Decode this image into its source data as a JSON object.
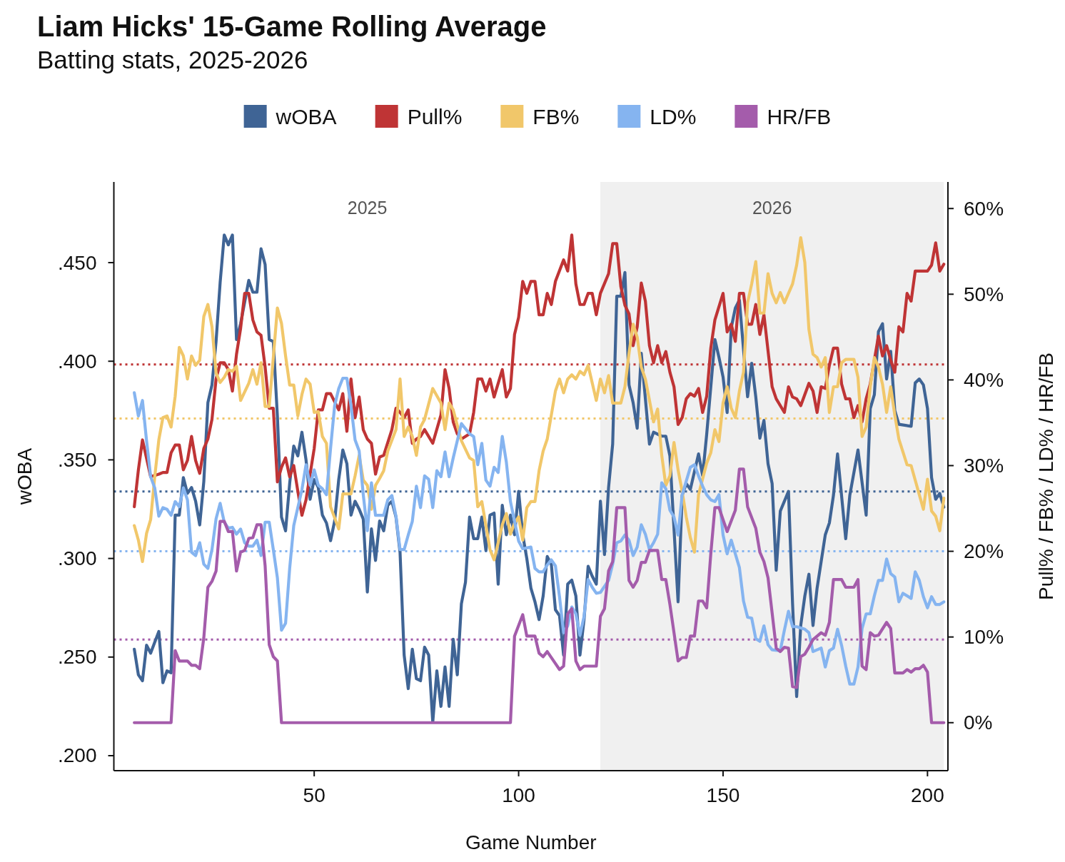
{
  "chart_data": {
    "type": "line",
    "title": "Liam Hicks' 15-Game Rolling Average",
    "subtitle": "Batting stats, 2025-2026",
    "xlabel": "Game Number",
    "ylabel": "wOBA",
    "y2label": "Pull% / FB% / LD% / HR/FB",
    "xlim": [
      1,
      205
    ],
    "xticks": [
      50,
      100,
      150,
      200
    ],
    "ylim": [
      0.1924,
      0.4909
    ],
    "yticks": [
      {
        "value": 0.2,
        "label": ".200"
      },
      {
        "value": 0.25,
        "label": ".250"
      },
      {
        "value": 0.3,
        "label": ".300"
      },
      {
        "value": 0.35,
        "label": ".350"
      },
      {
        "value": 0.4,
        "label": ".400"
      },
      {
        "value": 0.45,
        "label": ".450"
      }
    ],
    "y2lim": [
      -5.6,
      63.1
    ],
    "y2ticks": [
      {
        "value": 0,
        "label": "0%"
      },
      {
        "value": 10,
        "label": "10%"
      },
      {
        "value": 20,
        "label": "20%"
      },
      {
        "value": 30,
        "label": "30%"
      },
      {
        "value": 40,
        "label": "40%"
      },
      {
        "value": 50,
        "label": "50%"
      },
      {
        "value": 60,
        "label": "60%"
      }
    ],
    "legend": "top",
    "line_style": "solid",
    "annotations": [
      "2025"
    ],
    "bands": [
      {
        "axis": "x",
        "from": 120,
        "to": 204,
        "label": "2026",
        "color": "#f0f0f0"
      }
    ],
    "ref_lines": [
      {
        "axis": "y",
        "value": 0.334,
        "color": "#3f6495",
        "line_style": "dotted"
      },
      {
        "axis": "y2",
        "value": 41.8,
        "color": "#bf3435",
        "line_style": "dotted"
      },
      {
        "axis": "y2",
        "value": 35.5,
        "color": "#f1c76a",
        "line_style": "dotted"
      },
      {
        "axis": "y2",
        "value": 20.0,
        "color": "#85b4f0",
        "line_style": "dotted"
      },
      {
        "axis": "y2",
        "value": 9.7,
        "color": "#a45cab",
        "line_style": "dotted"
      }
    ],
    "series": [
      {
        "name": "wOBA",
        "color": "#3f6495",
        "x": [
          6,
          7,
          8,
          9,
          10,
          12,
          13,
          14,
          15,
          16,
          17,
          18,
          19,
          20,
          21,
          22,
          23,
          24,
          25,
          26,
          27,
          28,
          29,
          30,
          31,
          32,
          34,
          35,
          36,
          37,
          38,
          39,
          40,
          41,
          42,
          43,
          44,
          45,
          46,
          47,
          48,
          49,
          50,
          51,
          52,
          53,
          54,
          55,
          56,
          57,
          58,
          59,
          60,
          61,
          62,
          63,
          64,
          65,
          66,
          67,
          68,
          69,
          70,
          71,
          72,
          73,
          74,
          75,
          76,
          77,
          78,
          79,
          80,
          81,
          82,
          83,
          84,
          85,
          86,
          87,
          88,
          89,
          90,
          91,
          92,
          93,
          94,
          95,
          96,
          97,
          98,
          99,
          100,
          101,
          102,
          103,
          104,
          105,
          106,
          107,
          108,
          109,
          110,
          111,
          112,
          113,
          114,
          115,
          116,
          117,
          118,
          119,
          120,
          121,
          122,
          123,
          124,
          125,
          126,
          127,
          128,
          129,
          130,
          132,
          133,
          135,
          136,
          137,
          139,
          140,
          141,
          142,
          144,
          145,
          146,
          148,
          149,
          150,
          151,
          152,
          153,
          154,
          155,
          156,
          157,
          158,
          159,
          160,
          161,
          162,
          163,
          164,
          166,
          167,
          168,
          169,
          170,
          171,
          172,
          173,
          175,
          176,
          177,
          178,
          180,
          181,
          183,
          185,
          186,
          187,
          188,
          189,
          190,
          191,
          192,
          193,
          196,
          197,
          198,
          199,
          200,
          201,
          202,
          203,
          204
        ],
        "values": [
          0.254,
          0.241,
          0.238,
          0.256,
          0.252,
          0.263,
          0.237,
          0.243,
          0.242,
          0.322,
          0.322,
          0.341,
          0.333,
          0.336,
          0.329,
          0.317,
          0.339,
          0.379,
          0.388,
          0.41,
          0.44,
          0.464,
          0.459,
          0.464,
          0.411,
          0.419,
          0.441,
          0.435,
          0.435,
          0.457,
          0.449,
          0.411,
          0.41,
          0.372,
          0.321,
          0.314,
          0.338,
          0.357,
          0.352,
          0.364,
          0.35,
          0.33,
          0.34,
          0.336,
          0.322,
          0.318,
          0.309,
          0.319,
          0.34,
          0.355,
          0.348,
          0.322,
          0.329,
          0.325,
          0.32,
          0.283,
          0.315,
          0.299,
          0.319,
          0.314,
          0.327,
          0.329,
          0.321,
          0.303,
          0.251,
          0.234,
          0.254,
          0.239,
          0.238,
          0.255,
          0.251,
          0.217,
          0.243,
          0.225,
          0.245,
          0.225,
          0.259,
          0.241,
          0.277,
          0.288,
          0.321,
          0.31,
          0.31,
          0.321,
          0.304,
          0.322,
          0.323,
          0.287,
          0.327,
          0.312,
          0.322,
          0.312,
          0.334,
          0.312,
          0.3,
          0.285,
          0.278,
          0.269,
          0.281,
          0.301,
          0.297,
          0.274,
          0.271,
          0.251,
          0.287,
          0.289,
          0.281,
          0.251,
          0.269,
          0.296,
          0.291,
          0.287,
          0.329,
          0.302,
          0.336,
          0.358,
          0.433,
          0.433,
          0.445,
          0.388,
          0.379,
          0.366,
          0.404,
          0.358,
          0.364,
          0.362,
          0.362,
          0.352,
          0.278,
          0.332,
          0.338,
          0.335,
          0.353,
          0.342,
          0.363,
          0.411,
          0.402,
          0.392,
          0.374,
          0.417,
          0.427,
          0.431,
          0.406,
          0.382,
          0.399,
          0.382,
          0.361,
          0.37,
          0.348,
          0.338,
          0.294,
          0.324,
          0.334,
          0.277,
          0.23,
          0.266,
          0.281,
          0.292,
          0.266,
          0.285,
          0.312,
          0.318,
          0.332,
          0.353,
          0.31,
          0.332,
          0.355,
          0.322,
          0.376,
          0.383,
          0.415,
          0.419,
          0.391,
          0.405,
          0.375,
          0.368,
          0.367,
          0.389,
          0.391,
          0.388,
          0.376,
          0.341,
          0.33,
          0.333,
          0.326
        ]
      },
      {
        "name": "Pull%",
        "color": "#bf3435",
        "axis": "y2",
        "x": [
          6,
          7,
          8,
          10,
          12,
          13,
          14,
          15,
          16,
          17,
          18,
          19,
          20,
          21,
          22,
          23,
          24,
          25,
          26,
          27,
          28,
          29,
          30,
          31,
          32,
          33,
          34,
          35,
          36,
          37,
          38,
          39,
          40,
          41,
          42,
          43,
          44,
          45,
          46,
          47,
          48,
          49,
          50,
          51,
          52,
          53,
          54,
          56,
          57,
          58,
          59,
          60,
          61,
          62,
          63,
          64,
          65,
          66,
          67,
          69,
          70,
          71,
          72,
          73,
          74,
          75,
          76,
          77,
          79,
          81,
          82,
          83,
          84,
          85,
          86,
          88,
          89,
          90,
          91,
          92,
          93,
          94,
          96,
          97,
          98,
          99,
          100,
          101,
          102,
          103,
          104,
          105,
          106,
          107,
          108,
          109,
          111,
          112,
          113,
          114,
          115,
          116,
          117,
          118,
          119,
          120,
          122,
          123,
          124,
          125,
          126,
          127,
          128,
          129,
          130,
          131,
          132,
          133,
          134,
          135,
          136,
          137,
          138,
          139,
          140,
          141,
          142,
          143,
          144,
          145,
          146,
          147,
          148,
          150,
          151,
          152,
          153,
          154,
          155,
          156,
          157,
          158,
          159,
          160,
          162,
          163,
          165,
          166,
          167,
          168,
          169,
          171,
          172,
          173,
          174,
          175,
          176,
          177,
          178,
          179,
          180,
          181,
          182,
          183,
          184,
          185,
          186,
          188,
          189,
          190,
          191,
          192,
          193,
          194,
          195,
          196,
          197,
          200,
          201,
          202,
          203,
          204
        ],
        "values": [
          25.2,
          29.5,
          33.0,
          28.7,
          29.0,
          29.2,
          29.2,
          31.5,
          32.4,
          32.4,
          29.5,
          30.6,
          33.4,
          30.6,
          29.1,
          32.0,
          33.1,
          35.4,
          40.1,
          42.0,
          42.0,
          41.2,
          38.7,
          43.0,
          46.0,
          50.1,
          50.1,
          47.0,
          45.6,
          45.2,
          41.5,
          36.7,
          36.7,
          28.1,
          29.8,
          30.9,
          28.7,
          30.0,
          27.0,
          24.2,
          26.0,
          29.0,
          32.0,
          36.5,
          36.5,
          38.4,
          38.4,
          36.5,
          38.4,
          34.0,
          40.1,
          35.6,
          38.0,
          34.2,
          33.1,
          32.6,
          29.0,
          31.0,
          31.2,
          34.2,
          36.7,
          36.2,
          35.6,
          36.5,
          32.6,
          33.1,
          33.4,
          34.2,
          32.6,
          35.9,
          41.2,
          39.0,
          35.1,
          33.7,
          33.1,
          33.7,
          36.2,
          40.1,
          40.1,
          38.7,
          40.1,
          38.0,
          41.2,
          38.0,
          39.0,
          45.3,
          47.3,
          51.5,
          50.1,
          51.5,
          51.5,
          47.6,
          47.6,
          50.1,
          48.8,
          51.5,
          54.0,
          52.7,
          56.9,
          51.2,
          48.8,
          48.8,
          50.1,
          50.1,
          47.6,
          50.1,
          52.4,
          55.9,
          55.9,
          50.9,
          48.7,
          47.7,
          44.0,
          46.2,
          51.3,
          49.2,
          44.0,
          42.0,
          44.0,
          42.0,
          43.3,
          40.9,
          39.2,
          34.8,
          35.6,
          37.8,
          38.4,
          38.1,
          39.0,
          36.2,
          38.1,
          43.7,
          47.0,
          50.1,
          45.6,
          46.5,
          44.5,
          50.1,
          50.1,
          46.5,
          46.5,
          48.8,
          45.3,
          47.6,
          39.2,
          37.8,
          36.2,
          39.2,
          38.0,
          37.8,
          37.0,
          39.6,
          38.7,
          36.2,
          39.2,
          39.0,
          41.7,
          43.7,
          43.7,
          39.5,
          37.8,
          37.8,
          35.6,
          37.0,
          35.1,
          37.8,
          39.5,
          45.1,
          42.8,
          44.0,
          42.3,
          40.9,
          46.2,
          45.6,
          50.1,
          49.2,
          52.7,
          52.7,
          53.4,
          56.0,
          52.7,
          53.5
        ]
      },
      {
        "name": "FB%",
        "color": "#f1c76a",
        "axis": "y2",
        "x": [
          6,
          7,
          8,
          9,
          10,
          11,
          12,
          13,
          14,
          15,
          16,
          17,
          18,
          19,
          20,
          21,
          22,
          23,
          24,
          25,
          26,
          27,
          28,
          29,
          30,
          31,
          32,
          34,
          35,
          36,
          37,
          38,
          39,
          40,
          41,
          42,
          43,
          44,
          45,
          46,
          47,
          48,
          49,
          50,
          51,
          52,
          53,
          54,
          56,
          57,
          59,
          60,
          61,
          62,
          63,
          64,
          65,
          66,
          67,
          68,
          70,
          71,
          72,
          73,
          74,
          75,
          76,
          77,
          79,
          81,
          82,
          83,
          84,
          86,
          88,
          89,
          90,
          91,
          93,
          94,
          95,
          96,
          97,
          98,
          99,
          100,
          101,
          102,
          103,
          104,
          105,
          106,
          107,
          109,
          110,
          111,
          112,
          113,
          114,
          115,
          116,
          117,
          119,
          120,
          121,
          122,
          123,
          125,
          126,
          127,
          128,
          129,
          130,
          131,
          133,
          134,
          135,
          136,
          137,
          138,
          139,
          140,
          141,
          142,
          143,
          144,
          146,
          147,
          148,
          149,
          150,
          151,
          152,
          153,
          154,
          155,
          156,
          157,
          158,
          159,
          160,
          161,
          162,
          163,
          164,
          165,
          167,
          168,
          169,
          170,
          171,
          172,
          173,
          174,
          175,
          176,
          177,
          178,
          179,
          180,
          182,
          183,
          184,
          185,
          186,
          187,
          188,
          189,
          190,
          191,
          192,
          193,
          195,
          196,
          198,
          199,
          200,
          201,
          202,
          203,
          204
        ],
        "values": [
          23.0,
          21.3,
          18.8,
          22.1,
          23.7,
          28.7,
          33.0,
          35.6,
          35.8,
          34.5,
          38.1,
          43.8,
          42.8,
          40.1,
          42.8,
          41.7,
          42.3,
          47.4,
          48.8,
          46.2,
          40.8,
          39.7,
          40.3,
          41.2,
          41.0,
          41.6,
          37.6,
          39.6,
          41.2,
          39.5,
          42.0,
          36.9,
          36.9,
          42.6,
          48.4,
          46.6,
          42.8,
          39.4,
          39.4,
          35.8,
          38.3,
          40.1,
          39.5,
          36.2,
          36.3,
          33.4,
          32.6,
          25.2,
          22.6,
          26.7,
          26.7,
          28.8,
          31.2,
          28.3,
          27.7,
          24.9,
          27.7,
          28.5,
          29.4,
          31.7,
          34.2,
          40.1,
          33.4,
          34.5,
          33.4,
          31.2,
          34.5,
          35.4,
          39.0,
          37.3,
          34.2,
          37.3,
          36.5,
          32.9,
          30.9,
          30.6,
          25.2,
          25.8,
          20.2,
          19.0,
          21.0,
          23.1,
          24.4,
          22.0,
          23.3,
          24.0,
          21.3,
          25.1,
          25.8,
          25.8,
          29.4,
          31.7,
          33.1,
          38.7,
          40.1,
          38.5,
          40.1,
          40.6,
          40.1,
          41.0,
          40.6,
          41.7,
          37.6,
          40.1,
          38.5,
          40.5,
          37.3,
          37.3,
          39.2,
          43.1,
          46.5,
          45.0,
          41.5,
          40.1,
          35.1,
          36.6,
          31.2,
          27.7,
          28.8,
          32.7,
          29.5,
          27.0,
          24.0,
          21.6,
          19.9,
          26.6,
          30.3,
          31.5,
          34.2,
          32.8,
          37.3,
          39.2,
          36.7,
          35.6,
          38.7,
          40.9,
          49.0,
          51.2,
          53.8,
          47.8,
          47.8,
          52.4,
          50.1,
          49.0,
          50.2,
          49.0,
          51.2,
          53.4,
          56.6,
          53.7,
          45.9,
          43.0,
          42.6,
          41.5,
          42.6,
          36.2,
          39.2,
          39.2,
          42.0,
          42.4,
          42.4,
          40.3,
          33.4,
          34.5,
          39.2,
          42.6,
          41.5,
          39.5,
          36.2,
          39.2,
          35.9,
          33.1,
          30.1,
          30.0,
          26.6,
          24.9,
          28.4,
          24.7,
          24.1,
          22.4,
          26.2
        ]
      },
      {
        "name": "LD%",
        "color": "#85b4f0",
        "axis": "y2",
        "x": [
          6,
          7,
          8,
          9,
          10,
          11,
          12,
          13,
          14,
          15,
          16,
          17,
          18,
          19,
          20,
          21,
          22,
          23,
          24,
          25,
          26,
          27,
          28,
          29,
          30,
          31,
          32,
          33,
          34,
          35,
          36,
          37,
          38,
          39,
          40,
          41,
          42,
          43,
          44,
          45,
          47,
          48,
          49,
          50,
          51,
          52,
          53,
          54,
          55,
          56,
          57,
          58,
          59,
          60,
          61,
          62,
          63,
          64,
          65,
          67,
          68,
          69,
          70,
          71,
          72,
          73,
          74,
          75,
          76,
          77,
          78,
          79,
          80,
          81,
          82,
          83,
          84,
          86,
          88,
          89,
          90,
          91,
          92,
          93,
          94,
          95,
          96,
          97,
          98,
          100,
          101,
          103,
          104,
          105,
          106,
          107,
          108,
          109,
          110,
          111,
          112,
          113,
          114,
          115,
          116,
          117,
          118,
          119,
          120,
          122,
          123,
          124,
          125,
          126,
          127,
          128,
          129,
          130,
          131,
          132,
          133,
          134,
          135,
          136,
          137,
          138,
          139,
          140,
          142,
          143,
          144,
          145,
          146,
          147,
          148,
          149,
          150,
          151,
          152,
          154,
          155,
          156,
          157,
          158,
          159,
          160,
          161,
          162,
          164,
          165,
          166,
          167,
          168,
          170,
          171,
          172,
          173,
          174,
          175,
          176,
          177,
          178,
          179,
          180,
          181,
          182,
          183,
          184,
          185,
          186,
          187,
          188,
          189,
          190,
          191,
          192,
          193,
          194,
          196,
          197,
          198,
          199,
          200,
          201,
          202,
          203,
          204
        ],
        "values": [
          38.5,
          35.8,
          37.6,
          32.9,
          28.7,
          27.4,
          24.1,
          25.1,
          24.9,
          24.2,
          25.8,
          25.2,
          27.4,
          26.0,
          19.9,
          19.5,
          21.0,
          18.5,
          18.0,
          20.2,
          23.8,
          25.6,
          23.4,
          22.7,
          22.8,
          22.0,
          22.6,
          21.0,
          20.6,
          20.6,
          21.3,
          19.5,
          23.4,
          23.4,
          20.2,
          16.9,
          10.8,
          11.6,
          18.0,
          23.0,
          27.2,
          30.1,
          27.7,
          29.5,
          27.7,
          27.3,
          26.6,
          32.0,
          37.0,
          39.0,
          40.2,
          40.2,
          37.0,
          33.0,
          31.7,
          26.6,
          22.4,
          28.0,
          24.2,
          24.2,
          26.0,
          26.5,
          24.1,
          20.2,
          20.2,
          21.9,
          23.5,
          27.6,
          25.1,
          28.8,
          28.4,
          25.1,
          29.4,
          28.7,
          31.6,
          28.7,
          30.9,
          34.9,
          33.7,
          33.4,
          30.1,
          32.6,
          28.3,
          27.6,
          29.8,
          29.2,
          33.4,
          30.4,
          25.8,
          21.2,
          20.3,
          20.5,
          18.0,
          17.6,
          17.6,
          18.4,
          19.0,
          18.3,
          14.7,
          10.5,
          11.3,
          13.5,
          12.7,
          10.2,
          12.4,
          16.7,
          15.8,
          15.1,
          15.2,
          16.6,
          18.5,
          21.0,
          21.2,
          21.9,
          21.3,
          19.5,
          20.5,
          23.1,
          22.0,
          20.2,
          21.0,
          22.0,
          28.0,
          27.3,
          24.8,
          24.0,
          21.9,
          26.6,
          29.8,
          30.1,
          28.8,
          27.6,
          26.6,
          26.0,
          25.8,
          26.6,
          21.9,
          19.7,
          21.3,
          18.1,
          14.2,
          12.3,
          12.2,
          9.8,
          9.5,
          11.3,
          9.1,
          8.5,
          8.4,
          10.8,
          13.0,
          11.2,
          11.2,
          10.9,
          10.5,
          8.3,
          8.5,
          8.7,
          6.5,
          8.4,
          8.7,
          10.9,
          9.0,
          6.6,
          4.5,
          4.5,
          6.5,
          11.0,
          12.7,
          12.7,
          14.8,
          16.6,
          16.6,
          19.1,
          17.4,
          17.0,
          14.1,
          15.1,
          14.5,
          17.6,
          16.6,
          14.7,
          13.4,
          14.7,
          13.8,
          13.8,
          14.1
        ]
      },
      {
        "name": "HR/FB",
        "color": "#a45cab",
        "axis": "y2",
        "x": [
          6,
          15,
          16,
          17,
          19,
          20,
          21,
          22,
          23,
          24,
          25,
          26,
          27,
          28,
          29,
          30,
          31,
          32,
          33,
          34,
          35,
          36,
          37,
          38,
          39,
          40,
          41,
          42,
          98,
          99,
          101,
          102,
          104,
          105,
          106,
          107,
          109,
          110,
          111,
          112,
          113,
          114,
          115,
          116,
          119,
          120,
          121,
          122,
          123,
          124,
          126,
          127,
          128,
          129,
          130,
          131,
          132,
          134,
          135,
          136,
          137,
          139,
          140,
          141,
          142,
          143,
          144,
          145,
          146,
          147,
          148,
          149,
          151,
          153,
          154,
          155,
          156,
          158,
          159,
          160,
          161,
          163,
          164,
          165,
          166,
          167,
          168,
          169,
          170,
          171,
          172,
          174,
          175,
          176,
          177,
          179,
          180,
          182,
          183,
          184,
          185,
          186,
          187,
          188,
          190,
          191,
          192,
          194,
          195,
          196,
          197,
          198,
          199,
          200,
          201,
          204
        ],
        "values": [
          0,
          0,
          8.4,
          7.2,
          7.2,
          6.7,
          6.7,
          6.3,
          9.9,
          15.8,
          16.5,
          17.7,
          23.5,
          23.5,
          22.3,
          22.3,
          17.7,
          19.9,
          20.1,
          21.5,
          21.6,
          23.1,
          23.1,
          18.3,
          9.1,
          7.7,
          7.2,
          0,
          0,
          10.1,
          12.6,
          10.1,
          10.1,
          8.1,
          7.7,
          8.3,
          6.9,
          6.2,
          6.6,
          12.7,
          13.3,
          7.2,
          6.2,
          6.6,
          6.6,
          12.4,
          13.3,
          17.7,
          18.8,
          25.1,
          25.1,
          16.6,
          15.8,
          16.6,
          18.7,
          18.7,
          20.1,
          20.1,
          16.7,
          16.7,
          13.8,
          7.2,
          7.6,
          7.6,
          10.1,
          10.1,
          14.2,
          14.2,
          13.4,
          19.7,
          25.1,
          25.1,
          22.3,
          24.8,
          29.6,
          29.6,
          25.2,
          22.7,
          19.9,
          18.8,
          16.9,
          8.7,
          8.3,
          8.8,
          8.7,
          4.2,
          4.1,
          7.7,
          8.0,
          8.8,
          9.7,
          10.5,
          10.2,
          11.7,
          16.7,
          16.7,
          15.8,
          15.8,
          16.7,
          6.6,
          6.2,
          10.5,
          10.1,
          10.2,
          11.7,
          11.0,
          5.8,
          5.8,
          6.2,
          5.9,
          6.3,
          6.3,
          6.7,
          5.9,
          0,
          0
        ]
      }
    ]
  }
}
